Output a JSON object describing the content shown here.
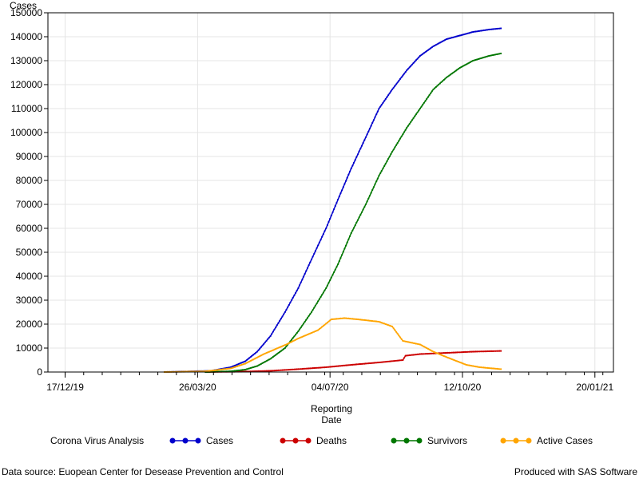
{
  "chart_data": {
    "type": "line",
    "ylabel": "Cases",
    "xlabel": [
      "Reporting",
      "Date"
    ],
    "ylim": [
      0,
      150000
    ],
    "yticks": [
      0,
      10000,
      20000,
      30000,
      40000,
      50000,
      60000,
      70000,
      80000,
      90000,
      100000,
      110000,
      120000,
      130000,
      140000,
      150000
    ],
    "xlim": [
      "2019-12-04",
      "2021-02-03"
    ],
    "xticks": [
      "17/12/19",
      "26/03/20",
      "04/07/20",
      "12/10/20",
      "20/01/21"
    ],
    "xtick_dates": [
      "2019-12-17",
      "2020-03-26",
      "2020-07-04",
      "2020-10-12",
      "2021-01-20"
    ],
    "grid": true,
    "legend_title": "Corona Virus Analysis",
    "legend_position": "bottom",
    "series": [
      {
        "name": "Cases",
        "color": "#0000cc",
        "points": [
          [
            "2020-03-01",
            0
          ],
          [
            "2020-04-05",
            500
          ],
          [
            "2020-04-20",
            2000
          ],
          [
            "2020-05-01",
            4500
          ],
          [
            "2020-05-10",
            8500
          ],
          [
            "2020-05-20",
            15000
          ],
          [
            "2020-05-31",
            25000
          ],
          [
            "2020-06-10",
            35000
          ],
          [
            "2020-06-20",
            47000
          ],
          [
            "2020-07-01",
            60000
          ],
          [
            "2020-07-10",
            72000
          ],
          [
            "2020-07-20",
            85000
          ],
          [
            "2020-07-31",
            98000
          ],
          [
            "2020-08-10",
            110000
          ],
          [
            "2020-08-20",
            118000
          ],
          [
            "2020-08-31",
            126000
          ],
          [
            "2020-09-10",
            132000
          ],
          [
            "2020-09-20",
            136000
          ],
          [
            "2020-09-30",
            139000
          ],
          [
            "2020-10-10",
            140500
          ],
          [
            "2020-10-20",
            142000
          ],
          [
            "2020-11-01",
            143000
          ],
          [
            "2020-11-10",
            143500
          ]
        ]
      },
      {
        "name": "Deaths",
        "color": "#cc0000",
        "points": [
          [
            "2020-04-01",
            0
          ],
          [
            "2020-05-01",
            200
          ],
          [
            "2020-05-20",
            500
          ],
          [
            "2020-06-10",
            1200
          ],
          [
            "2020-07-01",
            2000
          ],
          [
            "2020-07-20",
            3000
          ],
          [
            "2020-08-10",
            4000
          ],
          [
            "2020-08-28",
            5000
          ],
          [
            "2020-08-30",
            6800
          ],
          [
            "2020-09-10",
            7500
          ],
          [
            "2020-09-30",
            8000
          ],
          [
            "2020-10-20",
            8500
          ],
          [
            "2020-11-10",
            8800
          ]
        ]
      },
      {
        "name": "Survivors",
        "color": "#007700",
        "points": [
          [
            "2020-04-01",
            0
          ],
          [
            "2020-04-20",
            300
          ],
          [
            "2020-05-01",
            1000
          ],
          [
            "2020-05-10",
            2500
          ],
          [
            "2020-05-20",
            5500
          ],
          [
            "2020-05-31",
            10000
          ],
          [
            "2020-06-10",
            17000
          ],
          [
            "2020-06-20",
            25000
          ],
          [
            "2020-07-01",
            35000
          ],
          [
            "2020-07-10",
            45000
          ],
          [
            "2020-07-20",
            58000
          ],
          [
            "2020-07-31",
            70000
          ],
          [
            "2020-08-10",
            82000
          ],
          [
            "2020-08-20",
            92000
          ],
          [
            "2020-08-31",
            102000
          ],
          [
            "2020-09-10",
            110000
          ],
          [
            "2020-09-20",
            118000
          ],
          [
            "2020-09-30",
            123000
          ],
          [
            "2020-10-10",
            127000
          ],
          [
            "2020-10-20",
            130000
          ],
          [
            "2020-11-01",
            132000
          ],
          [
            "2020-11-10",
            133000
          ]
        ]
      },
      {
        "name": "Active Cases",
        "color": "#ffa500",
        "points": [
          [
            "2020-03-01",
            0
          ],
          [
            "2020-04-01",
            300
          ],
          [
            "2020-04-20",
            1500
          ],
          [
            "2020-05-01",
            3500
          ],
          [
            "2020-05-15",
            7500
          ],
          [
            "2020-06-01",
            11500
          ],
          [
            "2020-06-10",
            14000
          ],
          [
            "2020-06-25",
            17500
          ],
          [
            "2020-07-05",
            22000
          ],
          [
            "2020-07-15",
            22500
          ],
          [
            "2020-07-25",
            22000
          ],
          [
            "2020-08-10",
            21000
          ],
          [
            "2020-08-20",
            19000
          ],
          [
            "2020-08-28",
            13000
          ],
          [
            "2020-09-10",
            11500
          ],
          [
            "2020-09-20",
            8500
          ],
          [
            "2020-10-01",
            6000
          ],
          [
            "2020-10-15",
            3000
          ],
          [
            "2020-10-25",
            2000
          ],
          [
            "2020-11-10",
            1200
          ]
        ]
      }
    ]
  },
  "footer": {
    "source": "Data source: Euopean Center for Desease Prevention and Control",
    "produced": "Produced with SAS Software"
  }
}
